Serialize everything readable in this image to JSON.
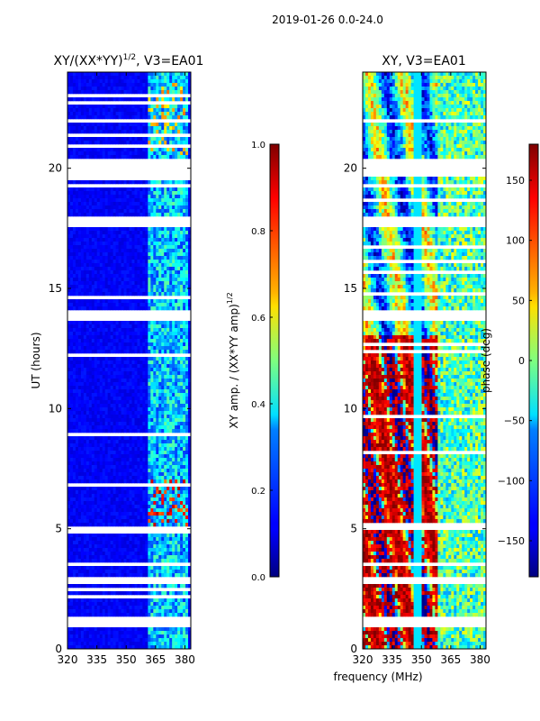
{
  "figure": {
    "suptitle": "2019-01-26 0.0-24.0",
    "xlabel": "frequency (MHz)"
  },
  "chart_data": [
    {
      "type": "heatmap",
      "title_main": "XY/(XX*YY)",
      "title_exp": "1/2",
      "title_tail": ", V3=EA01",
      "ylabel": "UT (hours)",
      "x_ticks": [
        "320",
        "335",
        "350",
        "365",
        "380"
      ],
      "x_tick_values": [
        320,
        335,
        350,
        365,
        380
      ],
      "xlim": [
        320,
        383
      ],
      "y_ticks": [
        "0",
        "5",
        "10",
        "15",
        "20"
      ],
      "y_tick_values": [
        0,
        5,
        10,
        15,
        20
      ],
      "ylim": [
        0,
        24
      ],
      "colorbar": {
        "label_main": "XY amp. / (XX*YY amp)",
        "label_exp": "1/2",
        "ticks": [
          "0.0",
          "0.2",
          "0.4",
          "0.6",
          "0.8",
          "1.0"
        ],
        "tick_values": [
          0.0,
          0.2,
          0.4,
          0.6,
          0.8,
          1.0
        ],
        "range": [
          0.0,
          1.0
        ]
      },
      "gap_hours": [
        [
          0.85,
          1.35
        ],
        [
          2.65,
          3.0
        ],
        [
          3.45,
          3.65
        ],
        [
          5.0,
          5.05
        ],
        [
          13.7,
          14.1
        ],
        [
          17.5,
          18.05
        ],
        [
          19.6,
          20.35
        ],
        [
          21.95,
          22.05
        ]
      ],
      "band_freq_MHz": [
        361,
        382
      ],
      "background_level": 0.12,
      "band_level": 0.32
    },
    {
      "type": "heatmap",
      "title": "XY, V3=EA01",
      "x_ticks": [
        "320",
        "335",
        "350",
        "365",
        "380"
      ],
      "x_tick_values": [
        320,
        335,
        350,
        365,
        380
      ],
      "xlim": [
        320,
        383
      ],
      "y_ticks": [
        "0",
        "5",
        "10",
        "15",
        "20"
      ],
      "y_tick_values": [
        0,
        5,
        10,
        15,
        20
      ],
      "ylim": [
        0,
        24
      ],
      "colorbar": {
        "label": "phase (deg)",
        "ticks": [
          "−150",
          "−100",
          "−50",
          "0",
          "50",
          "100",
          "150"
        ],
        "tick_values": [
          -150,
          -100,
          -50,
          0,
          50,
          100,
          150
        ],
        "range": [
          -180,
          180
        ]
      },
      "gap_hours": [
        [
          0.85,
          1.35
        ],
        [
          2.65,
          3.0
        ],
        [
          3.45,
          3.65
        ],
        [
          5.0,
          5.05
        ],
        [
          13.7,
          14.1
        ],
        [
          17.5,
          18.05
        ],
        [
          19.6,
          20.35
        ],
        [
          21.95,
          22.05
        ]
      ]
    }
  ]
}
